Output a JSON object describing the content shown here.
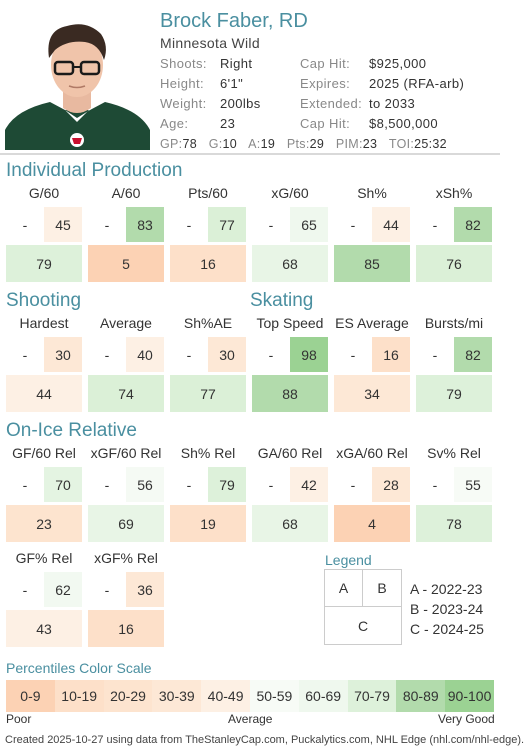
{
  "player": {
    "name": "Brock Faber, RD",
    "team": "Minnesota Wild",
    "info_left": [
      {
        "key": "Shoots:",
        "value": "Right"
      },
      {
        "key": "Height:",
        "value": "6'1\""
      },
      {
        "key": "Weight:",
        "value": "200lbs"
      },
      {
        "key": "Age:",
        "value": "23"
      }
    ],
    "info_right": [
      {
        "key": "Cap Hit:",
        "value": "$925,000"
      },
      {
        "key": "Expires:",
        "value": "2025 (RFA-arb)"
      },
      {
        "key": "Extended:",
        "value": "to 2033"
      },
      {
        "key": "Cap Hit:",
        "value": "$8,500,000"
      }
    ],
    "statline": [
      {
        "key": "GP:",
        "value": "78"
      },
      {
        "key": "G:",
        "value": "10"
      },
      {
        "key": "A:",
        "value": "19"
      },
      {
        "key": "Pts:",
        "value": "29"
      },
      {
        "key": "PIM:",
        "value": "23"
      },
      {
        "key": "TOI:",
        "value": "25:32"
      }
    ]
  },
  "sections": {
    "individual": "Individual Production",
    "shooting": "Shooting",
    "skating": "Skating",
    "onice": "On-Ice Relative"
  },
  "cards": [
    {
      "label": "G/60",
      "a": "-",
      "b": "45",
      "c": "79",
      "ca": "#ffffff",
      "cb": "#fdf0e4",
      "cc": "#ddf1da"
    },
    {
      "label": "A/60",
      "a": "-",
      "b": "83",
      "c": "5",
      "ca": "#ffffff",
      "cb": "#b2dbac",
      "cc": "#fcd2b4"
    },
    {
      "label": "Pts/60",
      "a": "-",
      "b": "77",
      "c": "16",
      "ca": "#ffffff",
      "cb": "#dbf0d7",
      "cc": "#fde0c9"
    },
    {
      "label": "xG/60",
      "a": "-",
      "b": "65",
      "c": "68",
      "ca": "#ffffff",
      "cb": "#eff8ee",
      "cc": "#e8f5e6"
    },
    {
      "label": "Sh%",
      "a": "-",
      "b": "44",
      "c": "85",
      "ca": "#ffffff",
      "cb": "#fdf0e4",
      "cc": "#b2dbac"
    },
    {
      "label": "xSh%",
      "a": "-",
      "b": "82",
      "c": "76",
      "ca": "#ffffff",
      "cb": "#b2dbac",
      "cc": "#dbf0d7"
    },
    {
      "label": "Hardest",
      "a": "-",
      "b": "30",
      "c": "44",
      "ca": "#ffffff",
      "cb": "#fde8d6",
      "cc": "#fdf0e4"
    },
    {
      "label": "Average",
      "a": "-",
      "b": "40",
      "c": "74",
      "ca": "#ffffff",
      "cb": "#fdf0e4",
      "cc": "#dbf0d7"
    },
    {
      "label": "Sh%AE",
      "a": "-",
      "b": "30",
      "c": "77",
      "ca": "#ffffff",
      "cb": "#fde8d6",
      "cc": "#dbf0d7"
    },
    {
      "label": "Top Speed",
      "a": "-",
      "b": "98",
      "c": "88",
      "ca": "#ffffff",
      "cb": "#9bd293",
      "cc": "#b2dbac"
    },
    {
      "label": "ES Average",
      "a": "-",
      "b": "16",
      "c": "34",
      "ca": "#ffffff",
      "cb": "#fde0c9",
      "cc": "#fde8d6"
    },
    {
      "label": "Bursts/mi",
      "a": "-",
      "b": "82",
      "c": "79",
      "ca": "#ffffff",
      "cb": "#b2dbac",
      "cc": "#ddf1da"
    },
    {
      "label": "GF/60 Rel",
      "a": "-",
      "b": "70",
      "c": "23",
      "ca": "#ffffff",
      "cb": "#e4f4e2",
      "cc": "#fde4cf"
    },
    {
      "label": "xGF/60 Rel",
      "a": "-",
      "b": "56",
      "c": "69",
      "ca": "#ffffff",
      "cb": "#f5faf4",
      "cc": "#e8f5e6"
    },
    {
      "label": "Sh% Rel",
      "a": "-",
      "b": "79",
      "c": "19",
      "ca": "#ffffff",
      "cb": "#ddf1da",
      "cc": "#fde0c9"
    },
    {
      "label": "GA/60 Rel",
      "a": "-",
      "b": "42",
      "c": "68",
      "ca": "#ffffff",
      "cb": "#fdf0e4",
      "cc": "#e8f5e6"
    },
    {
      "label": "xGA/60 Rel",
      "a": "-",
      "b": "28",
      "c": "4",
      "ca": "#ffffff",
      "cb": "#fde8d6",
      "cc": "#fcd2b4"
    },
    {
      "label": "Sv% Rel",
      "a": "-",
      "b": "55",
      "c": "78",
      "ca": "#ffffff",
      "cb": "#f7fbf6",
      "cc": "#ddf1da"
    },
    {
      "label": "GF% Rel",
      "a": "-",
      "b": "62",
      "c": "43",
      "ca": "#ffffff",
      "cb": "#f2f9f1",
      "cc": "#fdf0e4"
    },
    {
      "label": "xGF% Rel",
      "a": "-",
      "b": "36",
      "c": "16",
      "ca": "#ffffff",
      "cb": "#fde8d6",
      "cc": "#fde0c9"
    }
  ],
  "legend": {
    "title": "Legend",
    "a": "A",
    "b": "B",
    "c": "C",
    "lines": [
      "A - 2022-23",
      "B - 2023-24",
      "C - 2024-25"
    ]
  },
  "scale": {
    "title": "Percentiles Color Scale",
    "bins": [
      {
        "label": "0-9",
        "color": "#fcd2b4"
      },
      {
        "label": "10-19",
        "color": "#fde0c9"
      },
      {
        "label": "20-29",
        "color": "#fde4cf"
      },
      {
        "label": "30-39",
        "color": "#fde8d6"
      },
      {
        "label": "40-49",
        "color": "#fdf0e4"
      },
      {
        "label": "50-59",
        "color": "#f7fbf6"
      },
      {
        "label": "60-69",
        "color": "#eff8ee"
      },
      {
        "label": "70-79",
        "color": "#ddf1da"
      },
      {
        "label": "80-89",
        "color": "#b2dbac"
      },
      {
        "label": "90-100",
        "color": "#9bd293"
      }
    ],
    "poor": "Poor",
    "average": "Average",
    "very_good": "Very Good"
  },
  "footer": "Created 2025-10-27 using data from TheStanleyCap.com, Puckalytics.com, NHL Edge (nhl.com/nhl-edge)."
}
